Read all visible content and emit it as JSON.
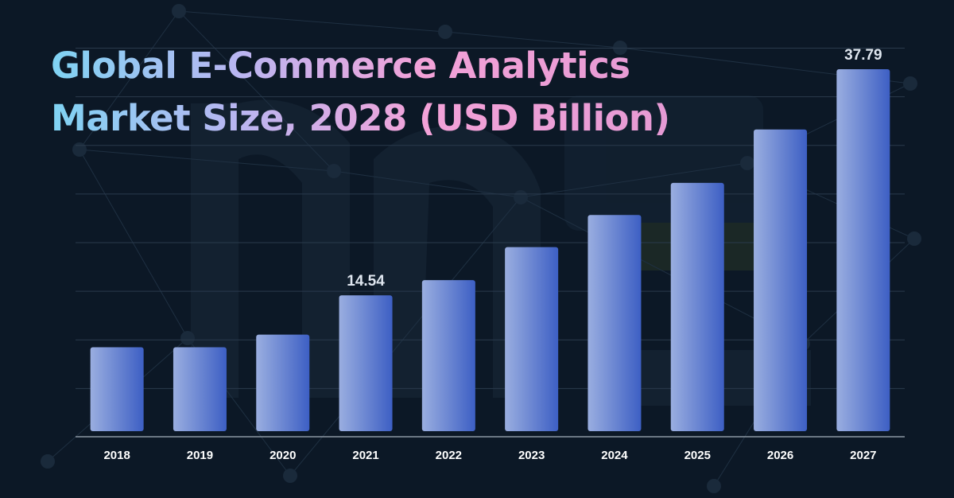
{
  "title": {
    "line1": "Global E-Commerce Analytics",
    "line2": "Market Size, 2028 (USD Billion)"
  },
  "colors": {
    "background": "#0c1826",
    "bar_light": "#9aaee0",
    "bar_dark": "#3d5fc4",
    "gridline": "#2a3a4c",
    "axis": "#8c97a3"
  },
  "chart_data": {
    "type": "bar",
    "title": "Global E-Commerce Analytics Market Size, 2028 (USD Billion)",
    "xlabel": "",
    "ylabel": "",
    "categories": [
      "2018",
      "2019",
      "2020",
      "2021",
      "2022",
      "2023",
      "2024",
      "2025",
      "2026",
      "2027"
    ],
    "values": [
      9.2,
      9.2,
      10.5,
      14.54,
      16.1,
      19.5,
      22.8,
      26.1,
      31.6,
      37.79
    ],
    "data_labels": [
      {
        "category": "2021",
        "text": "14.54"
      },
      {
        "category": "2027",
        "text": "37.79"
      }
    ],
    "ylim": [
      0,
      40
    ],
    "grid": true,
    "legend": "none"
  }
}
